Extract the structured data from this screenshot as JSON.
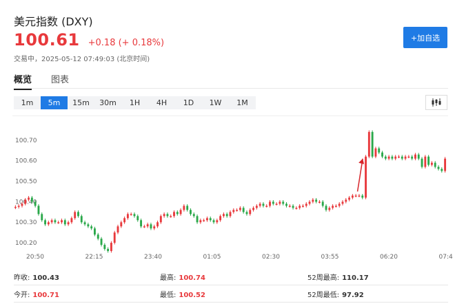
{
  "header": {
    "title": "美元指数 (DXY)",
    "price": "100.61",
    "change": "+0.18 (+ 0.18%)",
    "status": "交易中，2025-05-12 07:49:03 (北京时间)",
    "add_label": "+加自选"
  },
  "tabs": [
    "概览",
    "图表"
  ],
  "periods": [
    "1m",
    "5m",
    "15m",
    "30m",
    "1H",
    "4H",
    "1D",
    "1W",
    "1M"
  ],
  "active_period": "5m",
  "colors": {
    "up": "#e8393c",
    "down": "#2aa84a",
    "accent": "#1f7be5"
  },
  "chart_data": {
    "type": "candlestick",
    "y_ticks": [
      "100.70",
      "100.60",
      "100.50",
      "100.40",
      "100.30",
      "100.20"
    ],
    "x_ticks": [
      "20:50",
      "22:15",
      "23:40",
      "01:05",
      "02:30",
      "03:55",
      "06:20",
      "07:4"
    ],
    "ylim": [
      100.16,
      100.79
    ],
    "closes": [
      100.375,
      100.38,
      100.39,
      100.41,
      100.42,
      100.4,
      100.38,
      100.34,
      100.31,
      100.29,
      100.3,
      100.31,
      100.3,
      100.3,
      100.31,
      100.29,
      100.3,
      100.32,
      100.35,
      100.33,
      100.3,
      100.29,
      100.28,
      100.27,
      100.24,
      100.22,
      100.19,
      100.17,
      100.16,
      100.2,
      100.25,
      100.28,
      100.3,
      100.32,
      100.34,
      100.34,
      100.33,
      100.31,
      100.28,
      100.28,
      100.29,
      100.27,
      100.28,
      100.3,
      100.33,
      100.34,
      100.33,
      100.33,
      100.35,
      100.34,
      100.36,
      100.38,
      100.36,
      100.34,
      100.33,
      100.3,
      100.31,
      100.31,
      100.32,
      100.31,
      100.3,
      100.31,
      100.33,
      100.34,
      100.33,
      100.35,
      100.36,
      100.36,
      100.37,
      100.35,
      100.34,
      100.36,
      100.37,
      100.38,
      100.39,
      100.38,
      100.38,
      100.4,
      100.39,
      100.39,
      100.4,
      100.39,
      100.38,
      100.38,
      100.37,
      100.37,
      100.38,
      100.38,
      100.39,
      100.4,
      100.41,
      100.4,
      100.4,
      100.38,
      100.36,
      100.37,
      100.38,
      100.38,
      100.39,
      100.4,
      100.41,
      100.42,
      100.43,
      100.43,
      100.43,
      100.42,
      100.62,
      100.74,
      100.62,
      100.66,
      100.64,
      100.62,
      100.61,
      100.62,
      100.61,
      100.62,
      100.62,
      100.61,
      100.62,
      100.62,
      100.61,
      100.63,
      100.61,
      100.57,
      100.62,
      100.58,
      100.59,
      100.57,
      100.56,
      100.55,
      100.61
    ],
    "annotation": "arrow"
  },
  "stats": {
    "prev_close_label": "昨收:",
    "prev_close": "100.43",
    "open_label": "今开:",
    "open": "100.71",
    "high_label": "最高:",
    "high": "100.74",
    "low_label": "最低:",
    "low": "100.52",
    "w52_high_label": "52周最高:",
    "w52_high": "110.17",
    "w52_low_label": "52周最低:",
    "w52_low": "97.92"
  }
}
